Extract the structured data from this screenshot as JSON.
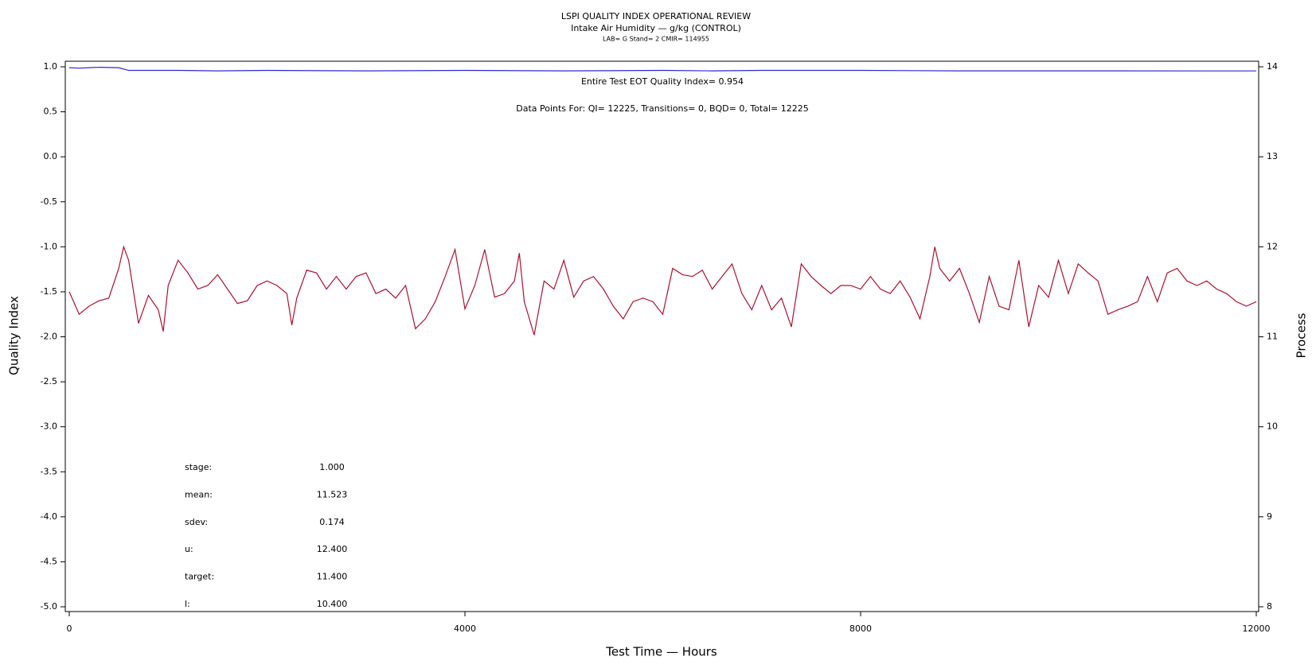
{
  "chart_data": {
    "type": "line",
    "title": "LSPI QUALITY INDEX OPERATIONAL REVIEW",
    "subtitle": "Intake Air Humidity — g/kg (CONTROL)",
    "caption": "LAB= G Stand= 2 CMIR= 114955",
    "x_label": "Test Time — Hours",
    "y_label": "Quality Index",
    "y2_label": "Process",
    "xlim": [
      0,
      12000
    ],
    "xticks": [
      0,
      4000,
      8000,
      12000
    ],
    "ylim": [
      -5,
      1
    ],
    "yticks": [
      {
        "value": 1,
        "label": "1.0"
      },
      0.5,
      {
        "value": 0,
        "label": "0.0"
      },
      -0.5,
      {
        "value": -1,
        "label": "-1.0"
      },
      -1.5,
      {
        "value": -2,
        "label": "-2.0"
      },
      -2.5,
      {
        "value": -3,
        "label": "-3.0"
      },
      -3.5,
      {
        "value": -4,
        "label": "-4.0"
      },
      -4.5,
      {
        "value": -5,
        "label": "-5.0"
      }
    ],
    "y2lim": [
      8,
      14
    ],
    "y2ticks": [
      8,
      9,
      10,
      11,
      12,
      13,
      14
    ],
    "annotations": [
      "Entire Test EOT Quality Index=   0.954",
      "Data Points For: QI= 12225, Transitions=     0, BQD=     0, Total= 12225"
    ],
    "stats": [
      {
        "label": "stage:",
        "value": "1.000"
      },
      {
        "label": "mean:",
        "value": "11.523"
      },
      {
        "label": "sdev:",
        "value": "0.174"
      },
      {
        "label": "u:",
        "value": "12.400"
      },
      {
        "label": "target:",
        "value": "11.400"
      },
      {
        "label": "l:",
        "value": "10.400"
      }
    ],
    "series": [
      {
        "name": "Quality Index",
        "color": "#2a2ad0",
        "x": [
          0,
          100,
          200,
          300,
          500,
          600,
          1000,
          1100,
          1500,
          2000,
          3000,
          4000,
          5000,
          6000,
          6500,
          7000,
          8000,
          9000,
          10000,
          12000
        ],
        "values": [
          0.99,
          0.985,
          0.99,
          0.995,
          0.99,
          0.96,
          0.96,
          0.96,
          0.955,
          0.96,
          0.955,
          0.96,
          0.955,
          0.96,
          0.955,
          0.96,
          0.96,
          0.955,
          0.955,
          0.954
        ]
      },
      {
        "name": "Process",
        "color": "#b01030",
        "axis": "y2",
        "x": [
          0,
          100,
          200,
          300,
          400,
          500,
          550,
          600,
          700,
          800,
          900,
          950,
          1000,
          1100,
          1200,
          1300,
          1400,
          1500,
          1600,
          1700,
          1800,
          1900,
          2000,
          2100,
          2200,
          2250,
          2300,
          2400,
          2500,
          2600,
          2700,
          2800,
          2900,
          3000,
          3100,
          3200,
          3300,
          3400,
          3500,
          3600,
          3700,
          3800,
          3900,
          4000,
          4100,
          4200,
          4300,
          4400,
          4500,
          4550,
          4600,
          4700,
          4800,
          4900,
          5000,
          5100,
          5200,
          5300,
          5400,
          5500,
          5600,
          5700,
          5800,
          5900,
          6000,
          6100,
          6200,
          6300,
          6400,
          6500,
          6600,
          6700,
          6800,
          6900,
          7000,
          7100,
          7200,
          7300,
          7400,
          7500,
          7600,
          7700,
          7800,
          7900,
          8000,
          8100,
          8200,
          8300,
          8400,
          8500,
          8600,
          8700,
          8750,
          8800,
          8900,
          9000,
          9100,
          9200,
          9300,
          9400,
          9500,
          9600,
          9700,
          9800,
          9900,
          10000,
          10100,
          10200,
          10300,
          10400,
          10500,
          10600,
          10700,
          10800,
          10900,
          11000,
          11100,
          11200,
          11300,
          11400,
          11500,
          11600,
          11700,
          11800,
          11900,
          12000
        ],
        "values": [
          11.5,
          11.25,
          11.34,
          11.4,
          11.43,
          11.76,
          12.0,
          11.85,
          11.15,
          11.46,
          11.3,
          11.06,
          11.57,
          11.85,
          11.71,
          11.53,
          11.57,
          11.69,
          11.53,
          11.37,
          11.4,
          11.57,
          11.62,
          11.57,
          11.48,
          11.13,
          11.43,
          11.74,
          11.71,
          11.53,
          11.67,
          11.53,
          11.67,
          11.71,
          11.48,
          11.53,
          11.43,
          11.57,
          11.09,
          11.2,
          11.39,
          11.67,
          11.97,
          11.31,
          11.57,
          11.97,
          11.44,
          11.48,
          11.62,
          11.93,
          11.39,
          11.02,
          11.62,
          11.53,
          11.85,
          11.44,
          11.62,
          11.67,
          11.53,
          11.34,
          11.2,
          11.39,
          11.43,
          11.39,
          11.25,
          11.76,
          11.69,
          11.67,
          11.74,
          11.53,
          11.67,
          11.81,
          11.48,
          11.3,
          11.57,
          11.3,
          11.43,
          11.11,
          11.81,
          11.67,
          11.57,
          11.48,
          11.57,
          11.57,
          11.53,
          11.67,
          11.53,
          11.48,
          11.62,
          11.44,
          11.2,
          11.67,
          12.0,
          11.76,
          11.62,
          11.76,
          11.48,
          11.16,
          11.67,
          11.34,
          11.3,
          11.85,
          11.11,
          11.57,
          11.44,
          11.85,
          11.48,
          11.81,
          11.71,
          11.62,
          11.25,
          11.3,
          11.34,
          11.39,
          11.67,
          11.39,
          11.71,
          11.76,
          11.62,
          11.57,
          11.62,
          11.53,
          11.48,
          11.39,
          11.34,
          11.39
        ]
      }
    ]
  }
}
